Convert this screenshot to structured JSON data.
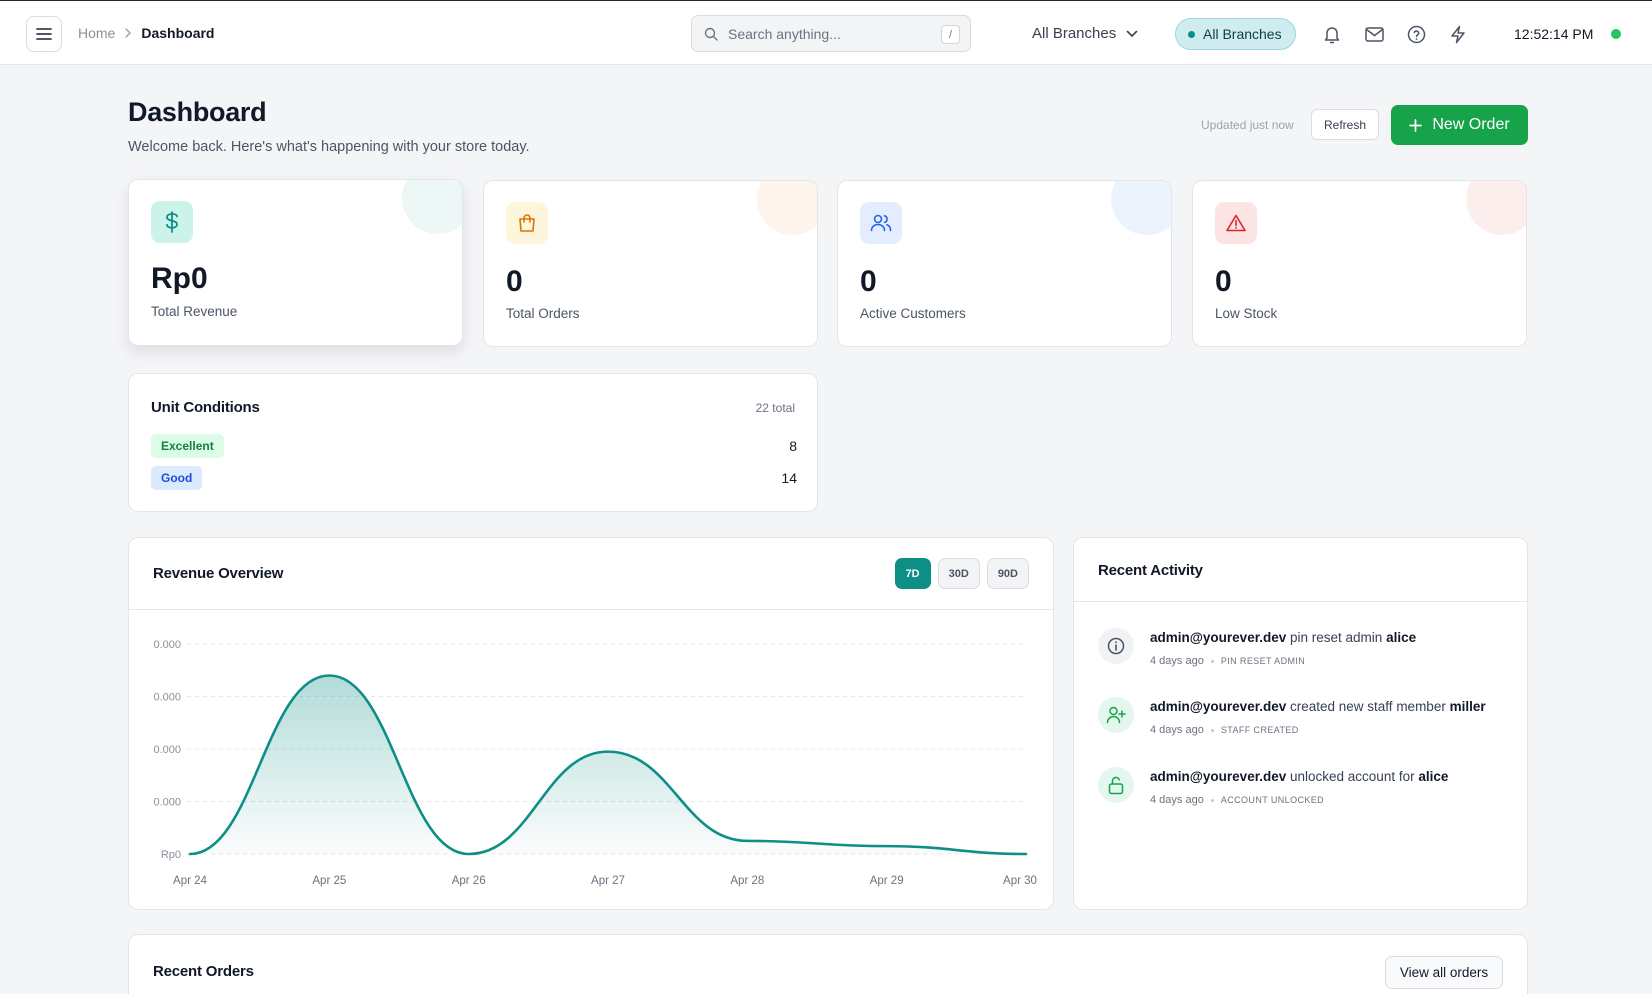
{
  "topbar": {
    "breadcrumb_home": "Home",
    "breadcrumb_current": "Dashboard",
    "search_placeholder": "Search anything...",
    "search_shortcut": "/",
    "branch_select": "All Branches",
    "branch_pill": "All Branches",
    "time": "12:52:14 PM",
    "icons": [
      "menu-icon",
      "chevron-right-icon",
      "search-icon",
      "chevron-down-icon",
      "bell-icon",
      "mail-icon",
      "help-icon",
      "lightning-icon"
    ]
  },
  "header": {
    "title": "Dashboard",
    "subtitle": "Welcome back. Here's what's happening with your store today.",
    "updated": "Updated just now",
    "refresh_label": "Refresh",
    "new_order_label": "New Order"
  },
  "stats": [
    {
      "value": "Rp0",
      "label": "Total Revenue",
      "icon": "dollar-icon",
      "color": "#0d8f86"
    },
    {
      "value": "0",
      "label": "Total Orders",
      "icon": "shopping-bag-icon",
      "color": "#d97706"
    },
    {
      "value": "0",
      "label": "Active Customers",
      "icon": "users-icon",
      "color": "#2563eb"
    },
    {
      "value": "0",
      "label": "Low Stock",
      "icon": "alert-triangle-icon",
      "color": "#dc2626"
    }
  ],
  "unit_conditions": {
    "title": "Unit Conditions",
    "total": "22 total",
    "rows": [
      {
        "label": "Excellent",
        "count": "8"
      },
      {
        "label": "Good",
        "count": "14"
      }
    ]
  },
  "revenue": {
    "title": "Revenue Overview",
    "ranges": [
      "7D",
      "30D",
      "90D"
    ],
    "active_range": "7D"
  },
  "chart_data": {
    "type": "area",
    "x": [
      "Apr 24",
      "Apr 25",
      "Apr 26",
      "Apr 27",
      "Apr 28",
      "Apr 29",
      "Apr 30"
    ],
    "values": [
      0,
      3.4,
      0,
      1.95,
      0.25,
      0.15,
      0
    ],
    "y_ticks": [
      "Rp0",
      "0.000",
      "0.000",
      "0.000",
      "0.000"
    ],
    "ylim": [
      0,
      4
    ],
    "grid": true,
    "color": "#0d8f86"
  },
  "activity": {
    "title": "Recent Activity",
    "items": [
      {
        "actor": "admin@yourever.dev",
        "action": "pin reset admin",
        "target": "alice",
        "time": "4 days ago",
        "tag": "PIN RESET ADMIN",
        "icon": "info-icon"
      },
      {
        "actor": "admin@yourever.dev",
        "action": "created new staff member",
        "target": "miller",
        "time": "4 days ago",
        "tag": "STAFF CREATED",
        "icon": "user-plus-icon"
      },
      {
        "actor": "admin@yourever.dev",
        "action": "unlocked account for",
        "target": "alice",
        "time": "4 days ago",
        "tag": "ACCOUNT UNLOCKED",
        "icon": "unlock-icon"
      }
    ]
  },
  "orders": {
    "title": "Recent Orders",
    "view_all_label": "View all orders"
  }
}
